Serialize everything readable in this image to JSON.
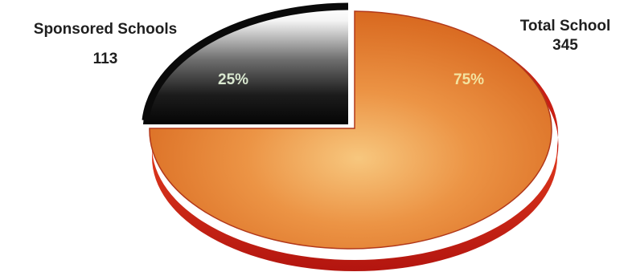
{
  "chart_data": {
    "type": "pie",
    "slices": [
      {
        "label": "Sponsored Schools",
        "count": "113",
        "value": 25,
        "value_label": "25%",
        "color": "#111111",
        "exploded": true
      },
      {
        "label": "Total School",
        "count": "345",
        "value": 75,
        "value_label": "75%",
        "color": "#e07a2a",
        "exploded": false
      }
    ],
    "colors": {
      "sponsored_dark": "#0d0d0d",
      "sponsored_light": "#ffffff",
      "total_orange": "#e27a2c",
      "total_highlight": "#f6c07a",
      "total_side_red": "#d9241c",
      "percent_text_sponsored": "#d9e8d0",
      "percent_text_total": "#f3e3a0"
    },
    "style": "3d-exploded"
  }
}
